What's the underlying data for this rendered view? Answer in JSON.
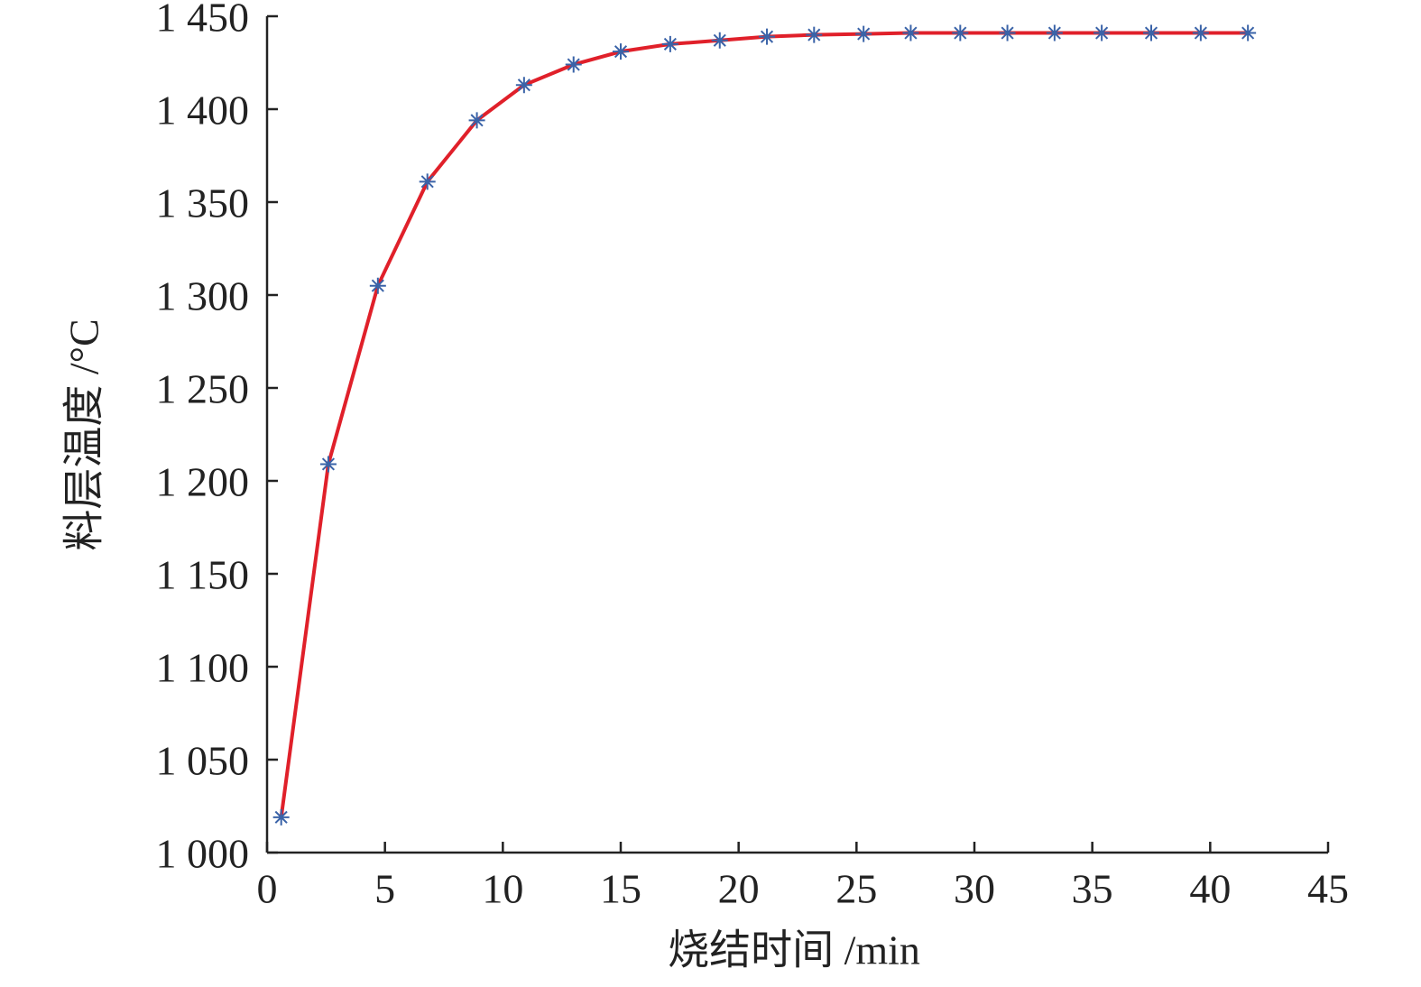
{
  "chart_data": {
    "type": "line",
    "x_label": "烧结时间 /min",
    "y_label": "料层温度 /°C",
    "x": [
      0.6,
      2.6,
      4.7,
      6.8,
      8.9,
      10.9,
      13.0,
      15.0,
      17.1,
      19.2,
      21.2,
      23.2,
      25.3,
      27.3,
      29.4,
      31.4,
      33.4,
      35.4,
      37.5,
      39.6,
      41.6
    ],
    "series": [
      {
        "color": "#e0202a",
        "marker_color": "#3a63a8",
        "values": [
          1019,
          1209,
          1305,
          1361,
          1394,
          1413,
          1424,
          1431,
          1435,
          1437,
          1439,
          1440,
          1440.5,
          1441,
          1441,
          1441,
          1441,
          1441,
          1441,
          1441,
          1441
        ]
      }
    ],
    "xlim": [
      0,
      45
    ],
    "xticks": [
      0,
      5,
      10,
      15,
      20,
      25,
      30,
      35,
      40,
      45
    ],
    "ylim": [
      1000,
      1450
    ],
    "yticks": [
      {
        "value": 1000,
        "label": "1 000"
      },
      {
        "value": 1050,
        "label": "1 050"
      },
      {
        "value": 1100,
        "label": "1 100"
      },
      {
        "value": 1150,
        "label": "1 150"
      },
      {
        "value": 1200,
        "label": "1 200"
      },
      {
        "value": 1250,
        "label": "1 250"
      },
      {
        "value": 1300,
        "label": "1 300"
      },
      {
        "value": 1350,
        "label": "1 350"
      },
      {
        "value": 1400,
        "label": "1 400"
      },
      {
        "value": 1450,
        "label": "1 450"
      }
    ],
    "grid": false
  }
}
